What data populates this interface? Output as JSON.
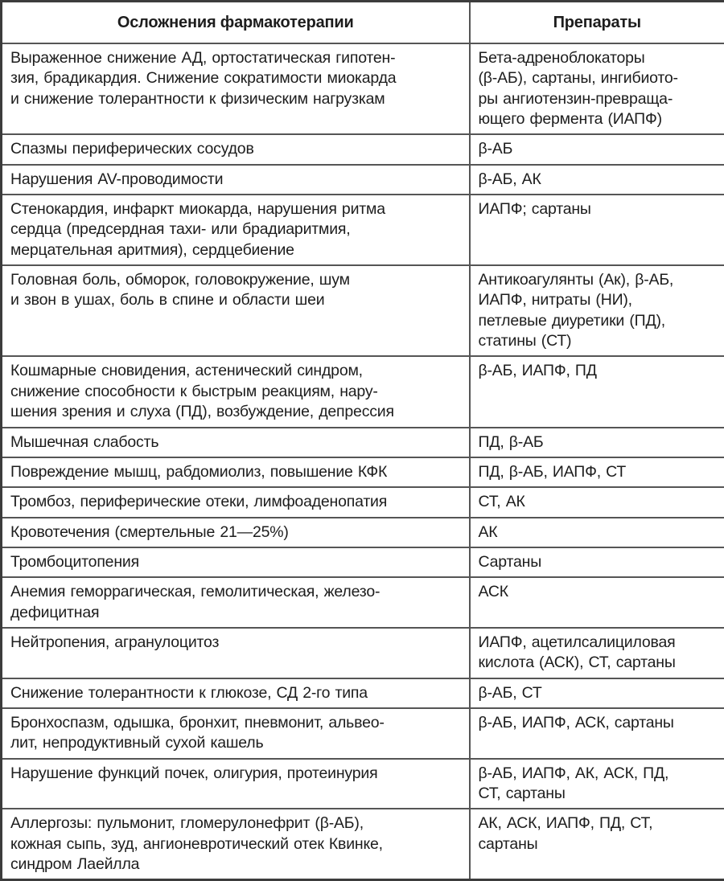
{
  "colors": {
    "background": "#ffffff",
    "text": "#1d1d1d",
    "border_inner": "#555555",
    "border_outer": "#3c3c3c"
  },
  "table": {
    "headers": {
      "complications": "Осложнения фармакотерапии",
      "drugs": "Препараты"
    },
    "rows": [
      {
        "complication": "Выраженное снижение АД, ортостатическая гипотен-\nзия, брадикардия. Снижение сократимости миокарда\nи снижение толерантности к физическим нагрузкам",
        "drugs": "Бета-адреноблокаторы\n(β-АБ), сартаны, ингибиото-\nры ангиотензин-превраща-\nющего фермента (ИАПФ)"
      },
      {
        "complication": "Спазмы периферических сосудов",
        "drugs": "β-АБ"
      },
      {
        "complication": "Нарушения AV-проводимости",
        "drugs": "β-АБ, АК"
      },
      {
        "complication": "Стенокардия, инфаркт миокарда, нарушения ритма\nсердца (предсердная тахи- или брадиаритмия,\nмерцательная аритмия), сердцебиение",
        "drugs": "ИАПФ; сартаны"
      },
      {
        "complication": "Головная боль, обморок, головокружение, шум\nи звон в ушах, боль в спине и области шеи",
        "drugs": "Антикоагулянты (Ак), β-АБ,\nИАПФ, нитраты (НИ),\nпетлевые диуретики (ПД),\nстатины (СТ)"
      },
      {
        "complication": "Кошмарные сновидения, астенический синдром,\nснижение способности к быстрым реакциям, нару-\nшения зрения и слуха (ПД), возбуждение, депрессия",
        "drugs": "β-АБ, ИАПФ, ПД"
      },
      {
        "complication": "Мышечная слабость",
        "drugs": "ПД, β-АБ"
      },
      {
        "complication": "Повреждение мышц, рабдомиолиз, повышение КФК",
        "drugs": "ПД, β-АБ, ИАПФ, СТ"
      },
      {
        "complication": "Тромбоз, периферические отеки, лимфоаденопатия",
        "drugs": "СТ, АК"
      },
      {
        "complication": "Кровотечения (смертельные 21—25%)",
        "drugs": "АК"
      },
      {
        "complication": "Тромбоцитопения",
        "drugs": "Сартаны"
      },
      {
        "complication": "Анемия геморрагическая, гемолитическая, железо-\nдефицитная",
        "drugs": "АСК"
      },
      {
        "complication": "Нейтропения, агранулоцитоз",
        "drugs": "ИАПФ, ацетилсалициловая\nкислота (АСК), СТ, сартаны"
      },
      {
        "complication": "Снижение толерантности к глюкозе, СД 2-го типа",
        "drugs": "β-АБ, СТ"
      },
      {
        "complication": "Бронхоспазм, одышка, бронхит, пневмонит, альвео-\nлит, непродуктивный сухой кашель",
        "drugs": "β-АБ, ИАПФ, АСК, сартаны"
      },
      {
        "complication": "Нарушение функций почек, олигурия, протеинурия",
        "drugs": "β-АБ, ИАПФ, АК, АСК, ПД,\nСТ, сартаны"
      },
      {
        "complication": "Аллергозы: пульмонит, гломерулонефрит (β-АБ),\nкожная сыпь, зуд, ангионевротический отек Квинке,\nсиндром Лаейлла",
        "drugs": "АК, АСК, ИАПФ, ПД, СТ,\nсартаны"
      }
    ]
  }
}
